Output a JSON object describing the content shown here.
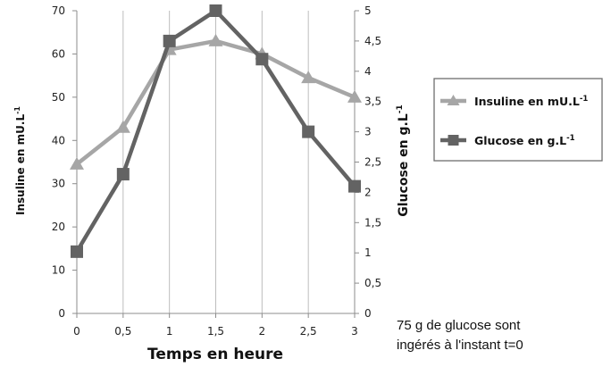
{
  "chart_data": {
    "type": "line",
    "xlabel": "Temps en heure",
    "ylabel_left": "Insuline en mU.L-1",
    "ylabel_right": "Glucose en g.L-1",
    "x": [
      0,
      0.5,
      1,
      1.5,
      2,
      2.5,
      3
    ],
    "x_tick_labels": [
      "0",
      "0,5",
      "1",
      "1,5",
      "2",
      "2,5",
      "3"
    ],
    "ylim_left": [
      0,
      70
    ],
    "y_left_tick_labels": [
      "0",
      "10",
      "20",
      "30",
      "40",
      "50",
      "60",
      "70"
    ],
    "ylim_right": [
      0,
      5
    ],
    "y_right_tick_labels": [
      "0",
      "0,5",
      "1",
      "1,5",
      "2",
      "2,5",
      "3",
      "3,5",
      "4",
      "4,5",
      "5"
    ],
    "grid": "vertical",
    "legend_position": "right",
    "series": [
      {
        "name": "Insuline en mU.L-1",
        "axis": "left",
        "marker": "triangle",
        "color": "#a6a6a6",
        "values": [
          34.5,
          43,
          61,
          63,
          60,
          54.5,
          50
        ]
      },
      {
        "name": "Glucose en g.L-1",
        "axis": "right",
        "marker": "square",
        "color": "#636363",
        "values": [
          1.02,
          2.3,
          4.5,
          5.0,
          4.2,
          3.0,
          2.1
        ]
      }
    ]
  },
  "legend": {
    "insuline_label": "Insuline en mU.L",
    "insuline_sup": "-1",
    "glucose_label": "Glucose en g.L",
    "glucose_sup": "-1"
  },
  "axis_titles": {
    "x": "Temps en heure",
    "left_main": "Insuline en mU.L",
    "left_sup": "-1",
    "right_main": "Glucose en g.L",
    "right_sup": "-1"
  },
  "note": {
    "line1": "75 g de glucose sont",
    "line2": "ingérés à l'instant t=0"
  }
}
